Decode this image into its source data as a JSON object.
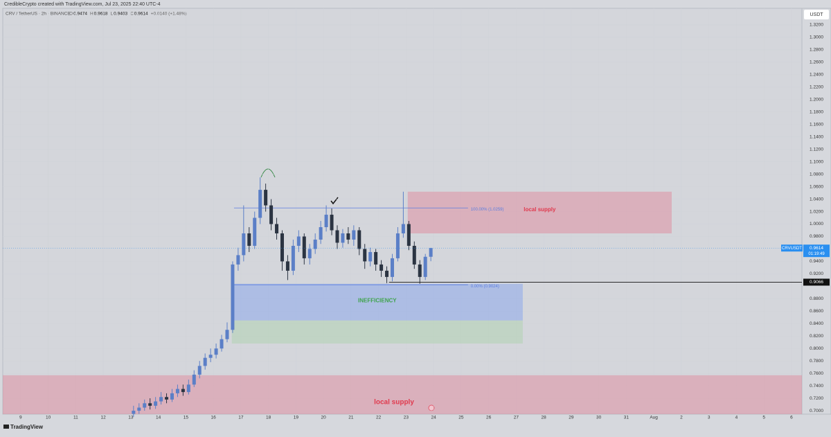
{
  "header": {
    "credit": "CredibleCrypto created with TradingView.com, Jul 23, 2025 22:40 UTC-4",
    "symbol": "CRV / TetherUS · 2h · BINANCE",
    "ohlc": [
      "O",
      "0.9474",
      "H",
      "0.9618",
      "L",
      "0.9403",
      "C",
      "0.9614",
      "+0.0140 (+1.48%)"
    ]
  },
  "footer": {
    "brand": "TradingView"
  },
  "chart_data": {
    "type": "candlestick",
    "currency": "USDT",
    "up_color": "#5b7fc7",
    "down_color": "#2b3442",
    "grid": true,
    "xlim": [
      8.35,
      37.38
    ],
    "ylim": [
      0.6945,
      1.3467
    ],
    "xticks": [
      9,
      10,
      11,
      12,
      13,
      14,
      15,
      16,
      17,
      18,
      19,
      20,
      21,
      22,
      23,
      24,
      25,
      26,
      27,
      28,
      29,
      30,
      31,
      {
        "value": 32,
        "label": "Aug"
      },
      {
        "value": 33,
        "label": "2"
      },
      {
        "value": 34,
        "label": "3"
      },
      {
        "value": 35,
        "label": "4"
      },
      {
        "value": 36,
        "label": "5"
      },
      {
        "value": 37,
        "label": "6"
      }
    ],
    "yticks": [
      {
        "value": 1.32,
        "label": "1.3200"
      },
      {
        "value": 1.3,
        "label": "1.3000"
      },
      {
        "value": 1.28,
        "label": "1.2800"
      },
      {
        "value": 1.26,
        "label": "1.2600"
      },
      {
        "value": 1.24,
        "label": "1.2400"
      },
      {
        "value": 1.22,
        "label": "1.2200"
      },
      {
        "value": 1.2,
        "label": "1.2000"
      },
      {
        "value": 1.18,
        "label": "1.1800"
      },
      {
        "value": 1.16,
        "label": "1.1600"
      },
      {
        "value": 1.14,
        "label": "1.1400"
      },
      {
        "value": 1.12,
        "label": "1.1200"
      },
      {
        "value": 1.1,
        "label": "1.1000"
      },
      {
        "value": 1.08,
        "label": "1.0800"
      },
      {
        "value": 1.06,
        "label": "1.0600"
      },
      {
        "value": 1.04,
        "label": "1.0400"
      },
      {
        "value": 1.02,
        "label": "1.0200"
      },
      {
        "value": 1.0,
        "label": "1.0000"
      },
      {
        "value": 0.98,
        "label": "0.9800"
      },
      {
        "value": 0.94,
        "label": "0.9400"
      },
      {
        "value": 0.92,
        "label": "0.9200"
      },
      {
        "value": 0.88,
        "label": "0.8800"
      },
      {
        "value": 0.86,
        "label": "0.8600"
      },
      {
        "value": 0.84,
        "label": "0.8400"
      },
      {
        "value": 0.82,
        "label": "0.8200"
      },
      {
        "value": 0.8,
        "label": "0.8000"
      },
      {
        "value": 0.78,
        "label": "0.7800"
      },
      {
        "value": 0.76,
        "label": "0.7600"
      },
      {
        "value": 0.74,
        "label": "0.7400"
      },
      {
        "value": 0.72,
        "label": "0.7200"
      },
      {
        "value": 0.7,
        "label": "0.7000"
      }
    ],
    "x": [
      13.1,
      13.3,
      13.5,
      13.7,
      13.9,
      14.1,
      14.3,
      14.5,
      14.7,
      14.9,
      15.1,
      15.3,
      15.5,
      15.7,
      15.9,
      16.1,
      16.3,
      16.5,
      16.7,
      16.9,
      17.1,
      17.3,
      17.5,
      17.7,
      17.9,
      18.1,
      18.3,
      18.5,
      18.7,
      18.9,
      19.1,
      19.3,
      19.5,
      19.7,
      19.9,
      20.1,
      20.3,
      20.5,
      20.7,
      20.9,
      21.1,
      21.3,
      21.5,
      21.7,
      21.9,
      22.1,
      22.3,
      22.5,
      22.7,
      22.9,
      23.1,
      23.3,
      23.5,
      23.7,
      23.9
    ],
    "open": [
      0.695,
      0.7,
      0.705,
      0.712,
      0.708,
      0.715,
      0.722,
      0.718,
      0.728,
      0.735,
      0.73,
      0.742,
      0.758,
      0.772,
      0.785,
      0.79,
      0.8,
      0.815,
      0.83,
      0.935,
      0.95,
      0.985,
      0.965,
      1.01,
      1.055,
      1.03,
      1.0,
      0.985,
      0.94,
      0.925,
      0.965,
      0.98,
      0.945,
      0.96,
      0.975,
      0.995,
      1.015,
      0.99,
      0.97,
      0.985,
      0.975,
      0.99,
      0.96,
      0.94,
      0.955,
      0.935,
      0.925,
      0.915,
      0.945,
      0.985,
      1.0,
      0.965,
      0.935,
      0.915,
      0.9474
    ],
    "high": [
      0.708,
      0.712,
      0.718,
      0.72,
      0.722,
      0.73,
      0.728,
      0.735,
      0.742,
      0.742,
      0.75,
      0.765,
      0.78,
      0.792,
      0.8,
      0.808,
      0.822,
      0.842,
      0.94,
      0.962,
      1.03,
      0.995,
      1.02,
      1.075,
      1.065,
      1.04,
      1.01,
      0.99,
      0.95,
      0.975,
      0.99,
      0.985,
      0.968,
      0.985,
      1.005,
      1.03,
      1.025,
      0.998,
      0.992,
      0.995,
      0.998,
      0.995,
      0.968,
      0.962,
      0.96,
      0.942,
      0.932,
      0.952,
      0.995,
      1.052,
      1.005,
      0.972,
      0.942,
      0.952,
      0.9618
    ],
    "low": [
      0.69,
      0.695,
      0.7,
      0.702,
      0.703,
      0.71,
      0.712,
      0.714,
      0.722,
      0.724,
      0.726,
      0.738,
      0.752,
      0.766,
      0.778,
      0.784,
      0.795,
      0.81,
      0.825,
      0.925,
      0.94,
      0.955,
      0.96,
      1.0,
      1.02,
      0.99,
      0.975,
      0.925,
      0.91,
      0.918,
      0.955,
      0.935,
      0.935,
      0.952,
      0.968,
      0.988,
      0.982,
      0.96,
      0.962,
      0.968,
      0.965,
      0.95,
      0.928,
      0.932,
      0.925,
      0.915,
      0.905,
      0.908,
      0.94,
      0.978,
      0.958,
      0.928,
      0.904,
      0.91,
      0.9403
    ],
    "close": [
      0.7,
      0.705,
      0.712,
      0.708,
      0.715,
      0.722,
      0.718,
      0.728,
      0.735,
      0.73,
      0.742,
      0.758,
      0.772,
      0.785,
      0.79,
      0.8,
      0.815,
      0.83,
      0.935,
      0.95,
      0.985,
      0.965,
      1.01,
      1.055,
      1.03,
      1.0,
      0.985,
      0.94,
      0.925,
      0.965,
      0.98,
      0.945,
      0.96,
      0.975,
      0.995,
      1.015,
      0.99,
      0.97,
      0.985,
      0.975,
      0.99,
      0.96,
      0.94,
      0.955,
      0.935,
      0.925,
      0.915,
      0.945,
      0.985,
      1.0,
      0.965,
      0.935,
      0.915,
      0.9474,
      0.9614
    ],
    "zones": [
      {
        "label": "local supply",
        "x": [
          23.06,
          32.65
        ],
        "y": [
          1.052,
          0.985
        ],
        "color": "rgba(226,130,150,0.45)",
        "text_color": "#e03a4e"
      },
      {
        "label": "INEFFICIENCY",
        "x": [
          16.67,
          27.24
        ],
        "y": [
          0.904,
          0.845
        ],
        "color": "rgba(140,170,235,0.55)",
        "text_color": "#3fa34d"
      },
      {
        "x": [
          16.67,
          27.24
        ],
        "y": [
          0.845,
          0.808
        ],
        "color": "rgba(170,210,170,0.45)"
      },
      {
        "label": "local supply",
        "x": [
          8.35,
          37.38
        ],
        "y": [
          0.757,
          0.6945
        ],
        "color": "rgba(226,130,150,0.45)",
        "text_color": "#e03a4e"
      }
    ],
    "levels": [
      {
        "value": 1.0259,
        "label": "100.00% (1.0259)",
        "x": [
          16.75,
          25.25
        ],
        "color": "#5c7ee0"
      },
      {
        "value": 0.9024,
        "label": "0.00% (0.9024)",
        "x": [
          16.75,
          25.25
        ],
        "color": "#5c7ee0"
      }
    ],
    "price_lines": [
      {
        "value": 0.9614,
        "label": "0.9614",
        "name": "CRVUSDT",
        "countdown": "01:19:49",
        "color": "#2a8ff0",
        "x": [
          8.35,
          37.38
        ]
      },
      {
        "value": 0.9066,
        "label": "0.9066",
        "color": "#111111",
        "x": [
          22.38,
          37.38
        ]
      }
    ]
  }
}
